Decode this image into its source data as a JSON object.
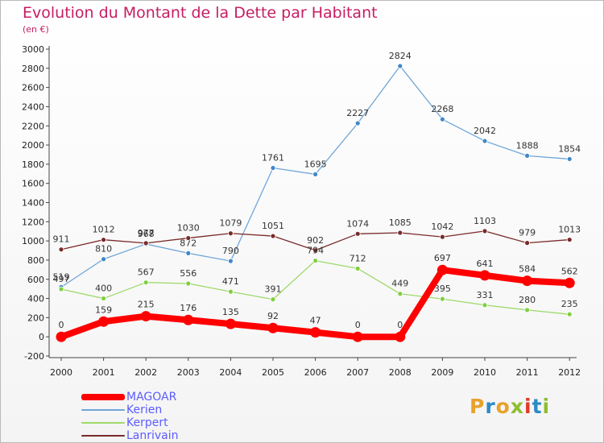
{
  "header": {
    "title": "Evolution du Montant de la Dette par Habitant",
    "subtitle": "(en €)"
  },
  "logo": {
    "text": "Proxiti",
    "colors": [
      "#e8a12b",
      "#2c8bc6",
      "#e8a12b",
      "#8fbd2f",
      "#e23b2a",
      "#2c8bc6",
      "#8fbd2f"
    ]
  },
  "chart_data": {
    "type": "line",
    "title": "Evolution du Montant de la Dette par Habitant",
    "subtitle": "(en €)",
    "xlabel": "",
    "ylabel": "",
    "x": [
      "2000",
      "2001",
      "2002",
      "2003",
      "2004",
      "2005",
      "2006",
      "2007",
      "2008",
      "2009",
      "2010",
      "2011",
      "2012"
    ],
    "ylim": [
      -200,
      3000
    ],
    "yticks": [
      -200,
      0,
      200,
      400,
      600,
      800,
      1000,
      1200,
      1400,
      1600,
      1800,
      2000,
      2200,
      2400,
      2600,
      2800,
      3000
    ],
    "grid": false,
    "legend_position": "bottom-left",
    "series": [
      {
        "name": "Kerien",
        "color": "#6fa6d8",
        "marker_color": "#3f88c9",
        "values": [
          519,
          810,
          968,
          872,
          790,
          1761,
          1695,
          2227,
          2824,
          2268,
          2042,
          1888,
          1854
        ]
      },
      {
        "name": "Lanrivain",
        "color": "#7a2a2a",
        "marker_color": "#7a2a2a",
        "values": [
          911,
          1012,
          977,
          1030,
          1079,
          1051,
          902,
          1074,
          1085,
          1042,
          1103,
          979,
          1013
        ]
      },
      {
        "name": "Kerpert",
        "color": "#9fd96a",
        "marker_color": "#7fcf3f",
        "values": [
          497,
          400,
          567,
          556,
          471,
          391,
          794,
          712,
          449,
          395,
          331,
          280,
          235
        ]
      },
      {
        "name": "MAGOAR",
        "color": "#ff0000",
        "marker_color": "#ff0000",
        "values": [
          0,
          159,
          215,
          176,
          135,
          92,
          47,
          0,
          0,
          697,
          641,
          584,
          562
        ]
      }
    ]
  },
  "legend": [
    {
      "name": "MAGOAR",
      "color": "#ff0000",
      "text_color": "#5c5cff"
    },
    {
      "name": "Kerien",
      "color": "#6fa6d8",
      "text_color": "#5c5cff"
    },
    {
      "name": "Kerpert",
      "color": "#9fd96a",
      "text_color": "#5c5cff"
    },
    {
      "name": "Lanrivain",
      "color": "#7a2a2a",
      "text_color": "#5c5cff"
    }
  ]
}
